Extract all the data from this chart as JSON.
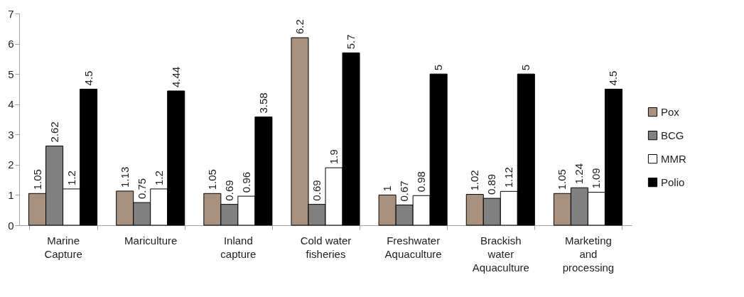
{
  "chart_data": {
    "type": "bar",
    "categories": [
      "Marine\nCapture",
      "Mariculture",
      "Inland\ncapture",
      "Cold water\nfisheries",
      "Freshwater\nAquaculture",
      "Brackish\nwater\nAquaculture",
      "Marketing\nand\nprocessing"
    ],
    "series": [
      {
        "name": "Pox",
        "color": "#a8927f",
        "values": [
          1.05,
          1.13,
          1.05,
          6.2,
          1,
          1.02,
          1.05
        ]
      },
      {
        "name": "BCG",
        "color": "#808080",
        "values": [
          2.62,
          0.75,
          0.69,
          0.69,
          0.67,
          0.89,
          1.24
        ]
      },
      {
        "name": "MMR",
        "color": "#ffffff",
        "values": [
          1.2,
          1.2,
          0.96,
          1.9,
          0.98,
          1.12,
          1.09
        ]
      },
      {
        "name": "Polio",
        "color": "#000000",
        "values": [
          4.5,
          4.44,
          3.58,
          5.7,
          5,
          5,
          4.5
        ]
      }
    ],
    "ylim": [
      0,
      7
    ],
    "yticks": [
      0,
      1,
      2,
      3,
      4,
      5,
      6,
      7
    ],
    "data_labels": true,
    "legend": "right"
  }
}
